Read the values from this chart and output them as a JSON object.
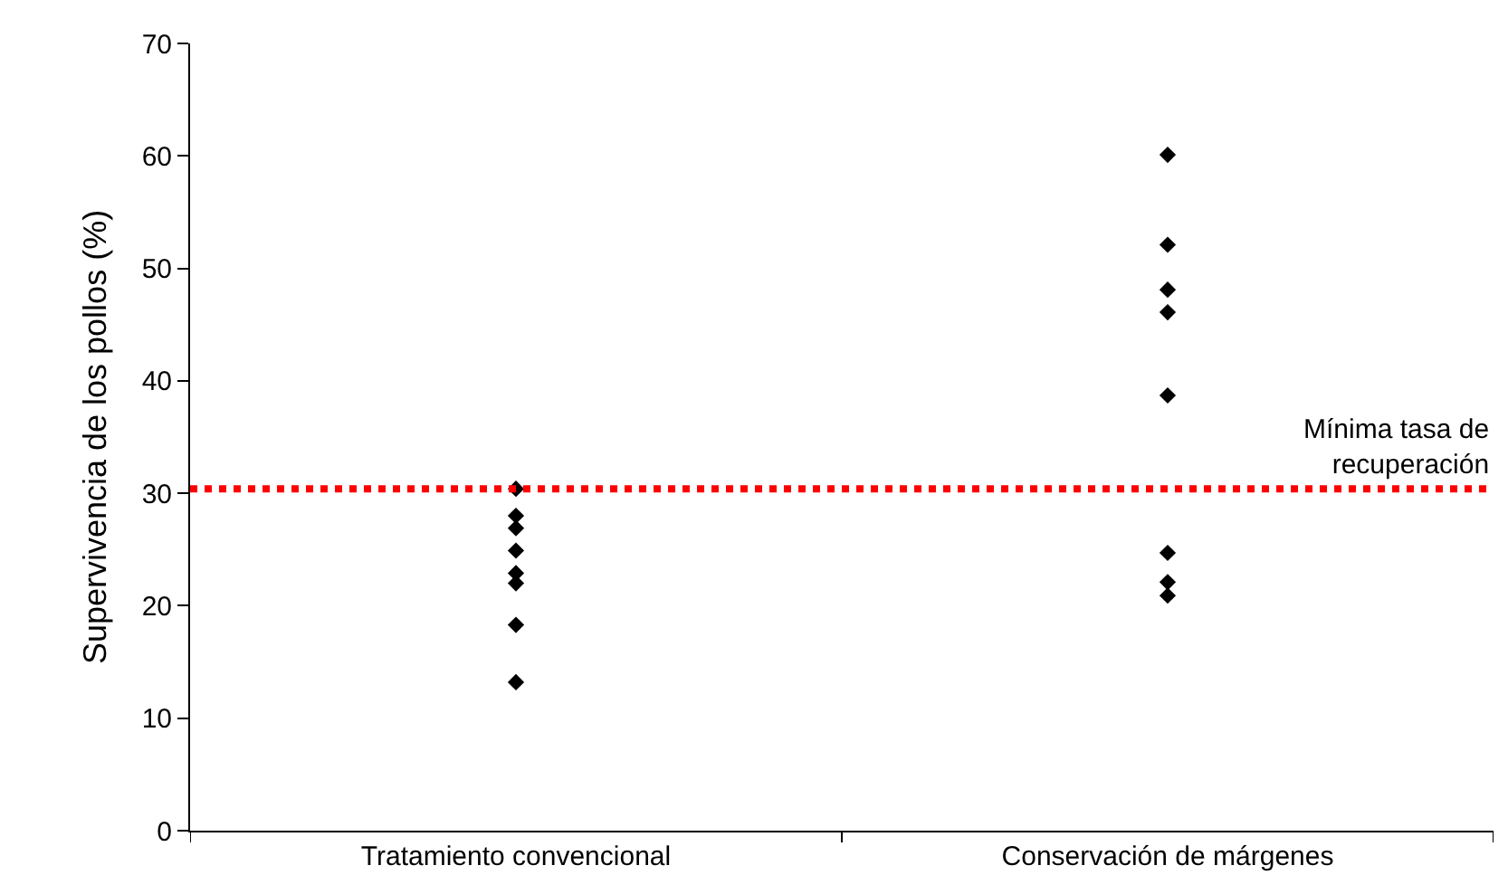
{
  "chart_data": {
    "type": "scatter",
    "ylabel": "Supervivencia de los pollos (%)",
    "categories": [
      "Tratamiento convencional",
      "Conservación de márgenes"
    ],
    "series": [
      {
        "color": "#000000",
        "x": [
          "Tratamiento convencional",
          "Tratamiento convencional",
          "Tratamiento convencional",
          "Tratamiento convencional",
          "Tratamiento convencional",
          "Tratamiento convencional",
          "Tratamiento convencional",
          "Tratamiento convencional"
        ],
        "values": [
          30.4,
          28.0,
          26.9,
          24.9,
          22.9,
          22.0,
          18.3,
          13.2
        ]
      },
      {
        "color": "#000000",
        "x": [
          "Conservación de márgenes",
          "Conservación de márgenes",
          "Conservación de márgenes",
          "Conservación de márgenes",
          "Conservación de márgenes",
          "Conservación de márgenes",
          "Conservación de márgenes",
          "Conservación de márgenes"
        ],
        "values": [
          60.1,
          52.1,
          48.1,
          46.1,
          38.7,
          24.7,
          22.1,
          20.9
        ]
      }
    ],
    "ylim": [
      0,
      70
    ],
    "yticks": [
      0,
      10,
      20,
      30,
      40,
      50,
      60,
      70
    ],
    "grid": false,
    "marker": "diamond",
    "ref_lines": [
      {
        "axis": "y",
        "value": 30.4,
        "label": "Mínima tasa de recuperación",
        "color": "#ff0000",
        "line_style": "dotted"
      }
    ]
  }
}
